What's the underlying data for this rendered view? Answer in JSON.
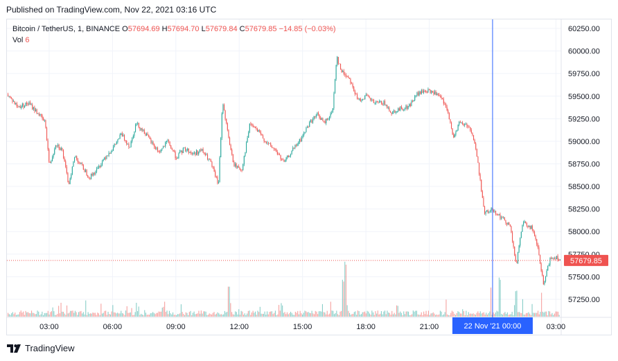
{
  "published": "Published on TradingView.com, Nov 22, 2021 03:16 UTC",
  "brand": "TradingView",
  "legend": {
    "symbol": "Bitcoin / TetherUS, 1, BINANCE",
    "o_label": "O",
    "o": "57694.69",
    "h_label": "H",
    "h": "57694.70",
    "l_label": "L",
    "l": "57679.84",
    "c_label": "C",
    "c": "57679.85",
    "change": "−14.85 (−0.03%)",
    "vol_label": "Vol",
    "vol": "6"
  },
  "colors": {
    "up": "#26a69a",
    "down": "#ef5350",
    "crosshair": "#2962ff",
    "grid": "#f0f3fa",
    "axis_text": "#131722",
    "price_line": "#ef5350"
  },
  "chart_data": {
    "type": "candlestick",
    "title": "Bitcoin / TetherUS, 1, BINANCE",
    "x_ticks": [
      "03:00",
      "06:00",
      "09:00",
      "12:00",
      "15:00",
      "18:00",
      "21:00",
      "03:00"
    ],
    "y_ticks": [
      "60250.00",
      "60000.00",
      "59750.00",
      "59500.00",
      "59250.00",
      "59000.00",
      "58750.00",
      "58500.00",
      "58250.00",
      "58000.00",
      "57750.00",
      "57500.00",
      "57250.00"
    ],
    "y_tick_values": [
      60250,
      60000,
      59750,
      59500,
      59250,
      59000,
      58750,
      58500,
      58250,
      58000,
      57750,
      57500,
      57250
    ],
    "ylim": [
      57050,
      60350
    ],
    "last_price": 57679.85,
    "last_price_label": "57679.85",
    "crosshair_label": "22 Nov '21   00:00",
    "hours_span": [
      1.0,
      27.25
    ],
    "crosshair_hour": 24.0,
    "grid": true,
    "price_path": [
      [
        1.0,
        59520
      ],
      [
        1.5,
        59380
      ],
      [
        2.0,
        59420
      ],
      [
        2.5,
        59300
      ],
      [
        2.8,
        59200
      ],
      [
        3.0,
        58720
      ],
      [
        3.3,
        58980
      ],
      [
        3.6,
        58900
      ],
      [
        3.9,
        58520
      ],
      [
        4.2,
        58840
      ],
      [
        4.6,
        58700
      ],
      [
        4.9,
        58600
      ],
      [
        5.3,
        58700
      ],
      [
        5.6,
        58820
      ],
      [
        6.0,
        58920
      ],
      [
        6.4,
        59080
      ],
      [
        6.8,
        58940
      ],
      [
        7.1,
        59200
      ],
      [
        7.5,
        59100
      ],
      [
        7.9,
        58960
      ],
      [
        8.2,
        58880
      ],
      [
        8.6,
        59000
      ],
      [
        9.0,
        58820
      ],
      [
        9.4,
        58920
      ],
      [
        9.8,
        58860
      ],
      [
        10.2,
        58900
      ],
      [
        10.6,
        58780
      ],
      [
        11.0,
        58520
      ],
      [
        11.2,
        59450
      ],
      [
        11.4,
        59150
      ],
      [
        11.7,
        58750
      ],
      [
        12.1,
        58680
      ],
      [
        12.5,
        59200
      ],
      [
        12.9,
        59100
      ],
      [
        13.3,
        58980
      ],
      [
        13.7,
        58900
      ],
      [
        14.1,
        58760
      ],
      [
        14.5,
        58900
      ],
      [
        14.9,
        59020
      ],
      [
        15.3,
        59200
      ],
      [
        15.7,
        59300
      ],
      [
        16.0,
        59200
      ],
      [
        16.4,
        59320
      ],
      [
        16.6,
        59950
      ],
      [
        16.8,
        59780
      ],
      [
        17.2,
        59700
      ],
      [
        17.6,
        59450
      ],
      [
        18.0,
        59500
      ],
      [
        18.4,
        59420
      ],
      [
        18.8,
        59430
      ],
      [
        19.2,
        59320
      ],
      [
        19.6,
        59360
      ],
      [
        20.0,
        59380
      ],
      [
        20.4,
        59520
      ],
      [
        20.8,
        59560
      ],
      [
        21.2,
        59540
      ],
      [
        21.6,
        59460
      ],
      [
        21.9,
        59300
      ],
      [
        22.1,
        59040
      ],
      [
        22.4,
        59200
      ],
      [
        22.8,
        59180
      ],
      [
        23.0,
        59100
      ],
      [
        23.2,
        58900
      ],
      [
        23.4,
        58560
      ],
      [
        23.6,
        58200
      ],
      [
        24.0,
        58250
      ],
      [
        24.4,
        58150
      ],
      [
        24.8,
        58080
      ],
      [
        25.1,
        57620
      ],
      [
        25.4,
        58100
      ],
      [
        25.8,
        58050
      ],
      [
        26.1,
        57850
      ],
      [
        26.4,
        57400
      ],
      [
        26.7,
        57700
      ],
      [
        27.0,
        57720
      ],
      [
        27.25,
        57680
      ]
    ],
    "volume_spikes": [
      [
        17.0,
        0.75
      ],
      [
        16.9,
        0.45
      ],
      [
        11.5,
        0.36
      ],
      [
        23.9,
        0.42
      ],
      [
        24.3,
        0.55
      ],
      [
        25.1,
        0.4
      ],
      [
        26.3,
        0.34
      ],
      [
        6.0,
        0.15
      ],
      [
        14.0,
        0.18
      ],
      [
        19.5,
        0.14
      ]
    ]
  }
}
